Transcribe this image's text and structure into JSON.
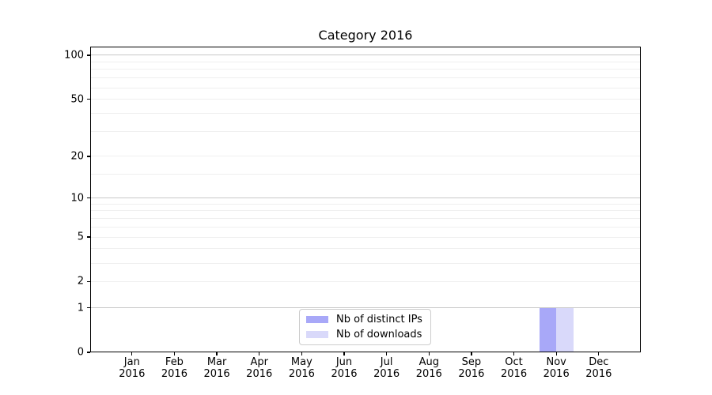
{
  "title": "Category 2016",
  "chart_data": {
    "type": "bar",
    "title": "Category 2016",
    "x_months": [
      "Jan",
      "Feb",
      "Mar",
      "Apr",
      "May",
      "Jun",
      "Jul",
      "Aug",
      "Sep",
      "Oct",
      "Nov",
      "Dec"
    ],
    "x_year": "2016",
    "y_scale": "log1p",
    "ylim": [
      0,
      114
    ],
    "y_ticks": [
      0,
      1,
      2,
      5,
      10,
      20,
      50,
      100
    ],
    "grid": {
      "major_values": [
        1,
        10,
        100
      ],
      "minor_values": [
        2,
        3,
        4,
        5,
        6,
        7,
        8,
        9,
        15,
        20,
        30,
        40,
        50,
        60,
        70,
        80,
        90
      ]
    },
    "series": [
      {
        "name": "Nb of distinct IPs",
        "color": "#a8a8f8",
        "values": [
          0,
          0,
          0,
          0,
          0,
          0,
          0,
          0,
          0,
          0,
          1,
          0
        ]
      },
      {
        "name": "Nb of downloads",
        "color": "#d9d9fa",
        "values": [
          0,
          0,
          0,
          0,
          0,
          0,
          0,
          0,
          0,
          0,
          1,
          0
        ]
      }
    ],
    "legend": {
      "position": "lower center"
    },
    "colors": {
      "grid_major": "#c8c8c8",
      "grid_minor": "#efefef",
      "spine": "#000000",
      "text": "#000000",
      "legend_border": "#cccccc"
    }
  }
}
